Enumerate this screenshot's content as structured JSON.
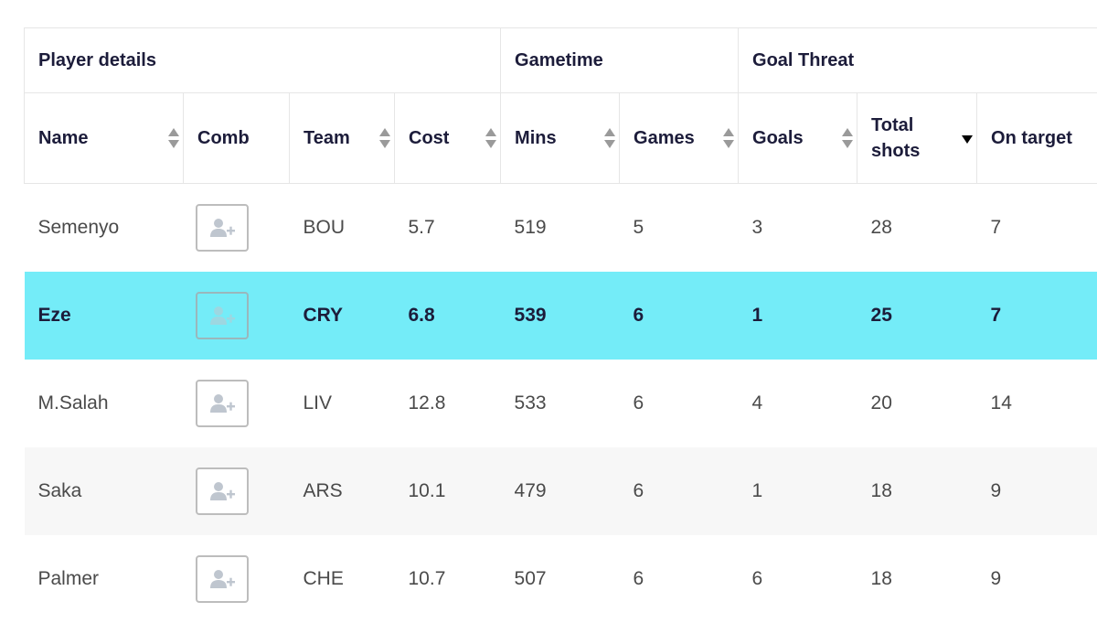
{
  "groups": {
    "player_details": "Player details",
    "gametime": "Gametime",
    "goal_threat": "Goal Threat"
  },
  "columns": {
    "name": "Name",
    "comb": "Comb",
    "team": "Team",
    "cost": "Cost",
    "mins": "Mins",
    "games": "Games",
    "goals": "Goals",
    "total_shots": "Total shots",
    "on_target": "On target"
  },
  "sort": {
    "column": "total_shots",
    "direction": "descending"
  },
  "comb_icon": "add-person-icon",
  "colors": {
    "highlight": "#74ecf8",
    "header_text": "#1c1c3a",
    "row_alt": "#f7f7f7"
  },
  "rows": [
    {
      "name": "Semenyo",
      "team": "BOU",
      "cost": "5.7",
      "mins": "519",
      "games": "5",
      "goals": "3",
      "total_shots": "28",
      "on_target": "7"
    },
    {
      "name": "Eze",
      "team": "CRY",
      "cost": "6.8",
      "mins": "539",
      "games": "6",
      "goals": "1",
      "total_shots": "25",
      "on_target": "7"
    },
    {
      "name": "M.Salah",
      "team": "LIV",
      "cost": "12.8",
      "mins": "533",
      "games": "6",
      "goals": "4",
      "total_shots": "20",
      "on_target": "14"
    },
    {
      "name": "Saka",
      "team": "ARS",
      "cost": "10.1",
      "mins": "479",
      "games": "6",
      "goals": "1",
      "total_shots": "18",
      "on_target": "9"
    },
    {
      "name": "Palmer",
      "team": "CHE",
      "cost": "10.7",
      "mins": "507",
      "games": "6",
      "goals": "6",
      "total_shots": "18",
      "on_target": "9"
    }
  ]
}
